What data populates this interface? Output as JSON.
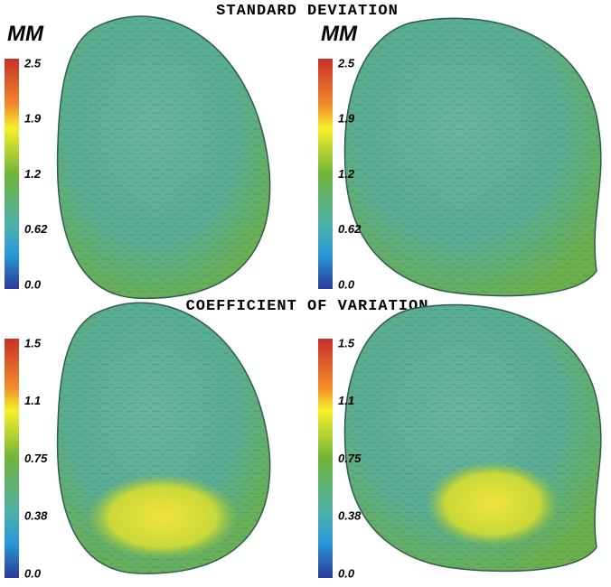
{
  "sections": [
    {
      "title": "STANDARD DEVIATION",
      "panels": [
        {
          "unit": "MM",
          "colorbar": [
            "2.5",
            "1.9",
            "1.2",
            "0.62",
            "0.0"
          ]
        },
        {
          "unit": "MM",
          "colorbar": [
            "2.5",
            "1.9",
            "1.2",
            "0.62",
            "0.0"
          ]
        }
      ]
    },
    {
      "title": "COEFFICIENT OF VARIATION",
      "panels": [
        {
          "colorbar": [
            "1.5",
            "1.1",
            "0.75",
            "0.38",
            "0.0"
          ]
        },
        {
          "colorbar": [
            "1.5",
            "1.1",
            "0.75",
            "0.38",
            "0.0"
          ]
        }
      ]
    }
  ]
}
